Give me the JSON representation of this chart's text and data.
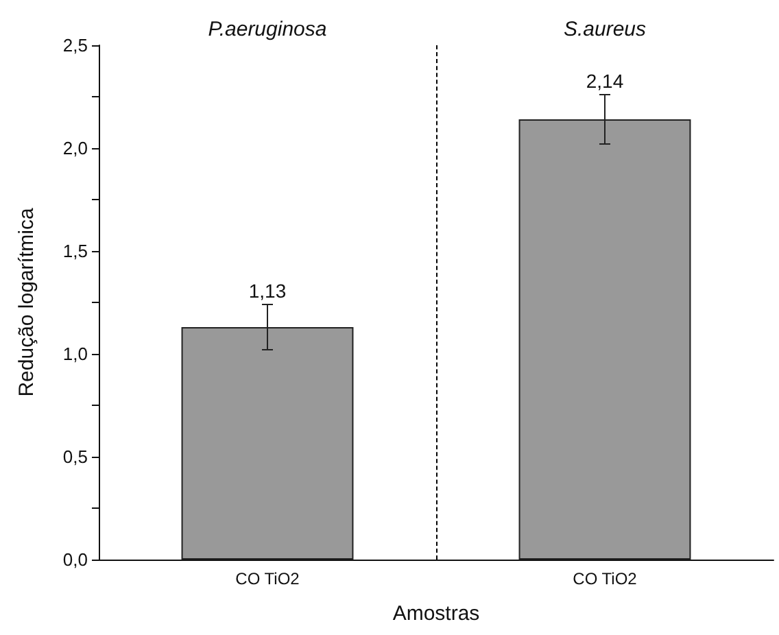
{
  "chart_data": {
    "type": "bar",
    "xlabel": "Amostras",
    "ylabel": "Redução logarítmica",
    "annotations": [
      "P.aeruginosa",
      "S.aureus"
    ],
    "categories": [
      "CO TiO2",
      "CO TiO2"
    ],
    "values": [
      1.13,
      2.14
    ],
    "errors": [
      0.11,
      0.12
    ],
    "value_labels": [
      "1,13",
      "2,14"
    ],
    "color": "#999999",
    "ylim": [
      0,
      2.5
    ],
    "yticks": [
      {
        "value": 0,
        "label": "0,0"
      },
      {
        "value": 0.25,
        "label": null
      },
      {
        "value": 0.5,
        "label": "0,5"
      },
      {
        "value": 0.75,
        "label": null
      },
      {
        "value": 1,
        "label": "1,0"
      },
      {
        "value": 1.25,
        "label": null
      },
      {
        "value": 1.5,
        "label": "1,5"
      },
      {
        "value": 1.75,
        "label": null
      },
      {
        "value": 2,
        "label": "2,0"
      },
      {
        "value": 2.25,
        "label": null
      },
      {
        "value": 2.5,
        "label": "2,5"
      }
    ],
    "grid": false
  }
}
